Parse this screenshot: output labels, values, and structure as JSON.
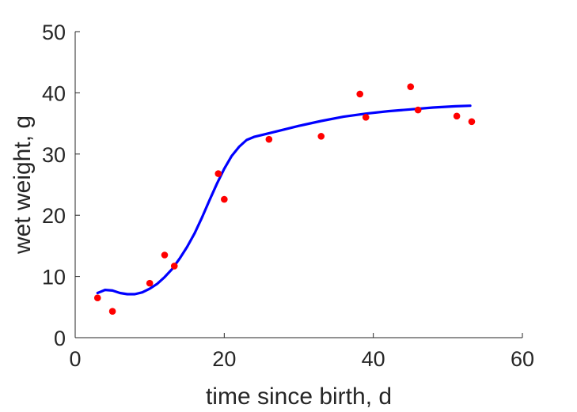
{
  "chart_data": {
    "type": "scatter",
    "xlabel": "time since birth, d",
    "ylabel": "wet weight, g",
    "xlim": [
      0,
      60
    ],
    "ylim": [
      0,
      50
    ],
    "xticks": [
      0,
      20,
      40,
      60
    ],
    "yticks": [
      0,
      10,
      20,
      30,
      40,
      50
    ],
    "grid": false,
    "box": "left-bottom",
    "series": [
      {
        "kind": "scatter",
        "color": "#ff0000",
        "x": [
          3,
          5,
          10,
          12,
          13.3,
          19.2,
          20,
          26,
          33,
          38.2,
          39,
          45,
          46,
          51.2,
          53.2
        ],
        "y": [
          6.5,
          4.3,
          8.9,
          13.5,
          11.7,
          26.8,
          22.6,
          32.4,
          32.9,
          39.8,
          36,
          41,
          37.2,
          36.2,
          35.3
        ]
      },
      {
        "kind": "line",
        "color": "#0000ff",
        "x": [
          3,
          4,
          5,
          6,
          7,
          8,
          9,
          10,
          11,
          12,
          13,
          14,
          15,
          16,
          17,
          18,
          19,
          20,
          21,
          22,
          23,
          24,
          25,
          27,
          30,
          33,
          36,
          39,
          42,
          45,
          48,
          51,
          53
        ],
        "y": [
          7.3,
          7.8,
          7.7,
          7.3,
          7.1,
          7.1,
          7.4,
          8.0,
          8.8,
          9.9,
          11.2,
          12.9,
          14.8,
          17.0,
          19.6,
          22.4,
          25.1,
          27.6,
          29.7,
          31.2,
          32.3,
          32.8,
          33.1,
          33.7,
          34.6,
          35.4,
          36.1,
          36.6,
          37.0,
          37.3,
          37.6,
          37.8,
          37.9
        ]
      }
    ]
  }
}
